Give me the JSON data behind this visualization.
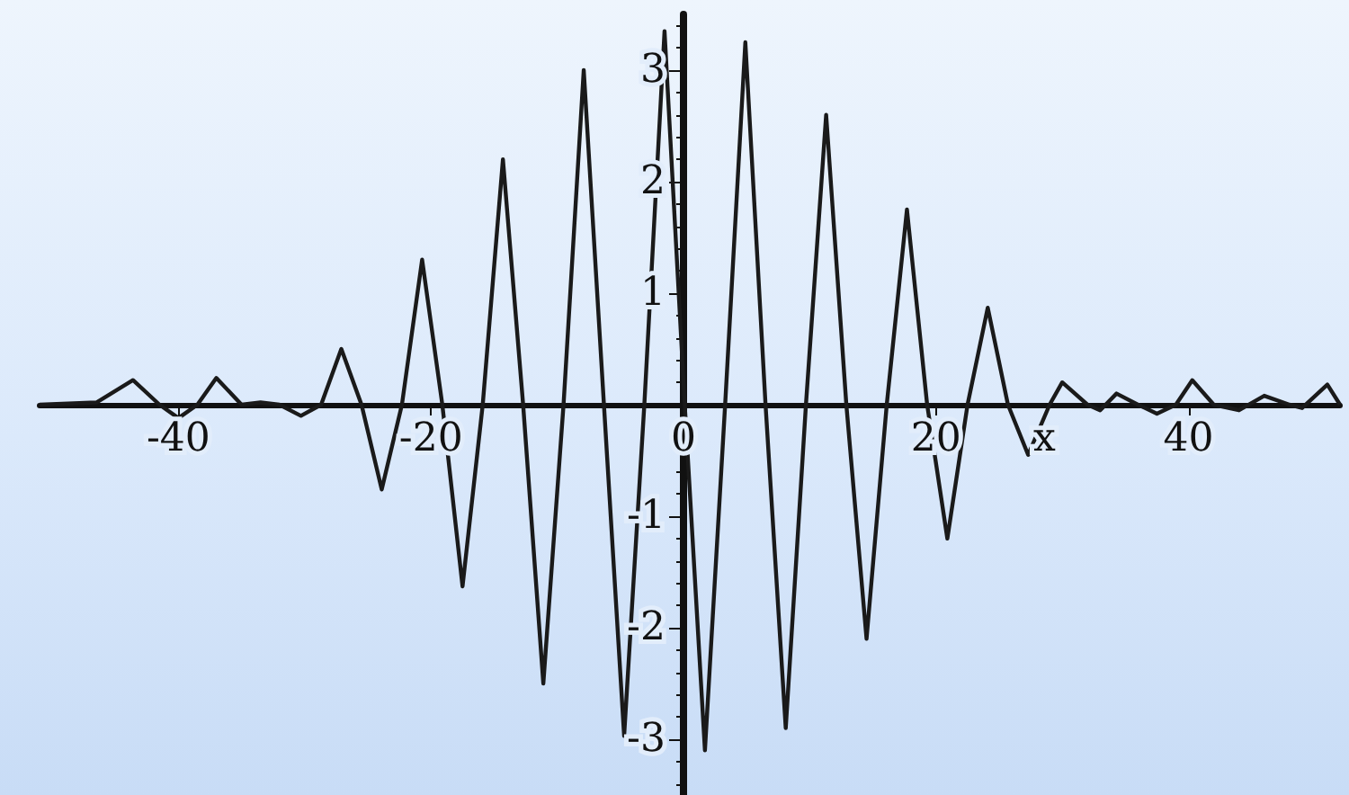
{
  "chart_data": {
    "type": "line",
    "xlabel": "x",
    "x": [
      -51,
      -46.5,
      -43.6,
      -41.5,
      -40,
      -38.5,
      -37,
      -35,
      -33.5,
      -32,
      -30.3,
      -28.7,
      -27.1,
      -25.5,
      -23.9,
      -22.3,
      -20.7,
      -19.1,
      -17.5,
      -15.9,
      -14.3,
      -12.7,
      -11.1,
      -9.5,
      -7.9,
      -6.3,
      -4.7,
      -3.1,
      -1.5,
      0.1,
      1.7,
      3.3,
      4.9,
      6.5,
      8.1,
      9.7,
      11.3,
      12.9,
      14.5,
      16.1,
      17.7,
      19.3,
      20.9,
      22.5,
      24.1,
      25.7,
      27.3,
      29,
      30,
      32,
      33,
      34.3,
      36,
      37.5,
      39,
      40.3,
      42,
      44,
      46,
      48,
      49,
      51,
      52
    ],
    "series": [
      {
        "color": "#1a1a1a",
        "values": [
          0,
          0.02,
          0.22,
          0,
          -0.12,
          0,
          0.24,
          0,
          0.02,
          0,
          -0.1,
          0,
          0.5,
          0,
          -0.76,
          0,
          1.3,
          0,
          -1.63,
          0,
          2.2,
          0,
          -2.5,
          0,
          3.0,
          0,
          -2.97,
          0,
          3.35,
          0,
          -3.1,
          0,
          3.25,
          0,
          -2.9,
          0,
          2.6,
          0,
          -2.1,
          0,
          1.75,
          0,
          -1.2,
          0,
          0.87,
          0,
          -0.45,
          0,
          0.2,
          0,
          -0.05,
          0.1,
          0,
          -0.08,
          0,
          0.22,
          0,
          -0.05,
          0.08,
          0,
          -0.03,
          0.18,
          0
        ]
      }
    ],
    "xlim": [
      -51,
      52
    ],
    "ylim": [
      -3.5,
      3.5
    ],
    "xticks": [
      -40,
      -20,
      0,
      20,
      40
    ],
    "yticks": [
      -3,
      -2,
      -1,
      1,
      2,
      3
    ],
    "grid": false,
    "marker": "none",
    "line_style": "solid"
  }
}
